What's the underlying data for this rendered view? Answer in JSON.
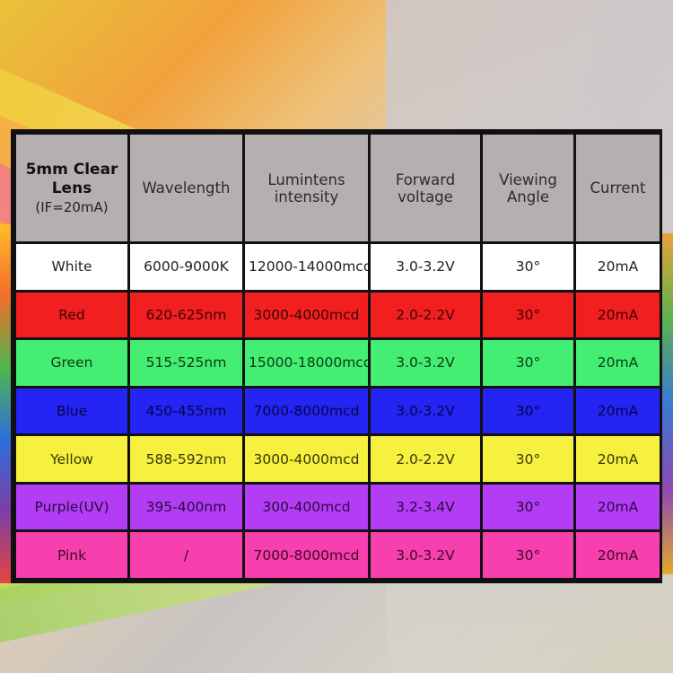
{
  "table": {
    "header": {
      "lens_title": "5mm Clear Lens",
      "lens_sub": "(IF=20mA)",
      "wavelength": "Wavelength",
      "intensity": "Lumintens intensity",
      "voltage": "Forward voltage",
      "angle": "Viewing Angle",
      "current": "Current"
    },
    "rows": [
      {
        "color": "White",
        "wavelength": "6000-9000K",
        "intensity": "12000-14000mcd",
        "voltage": "3.0-3.2V",
        "angle": "30°",
        "current": "20mA",
        "bg": "#ffffff"
      },
      {
        "color": "Red",
        "wavelength": "620-625nm",
        "intensity": "3000-4000mcd",
        "voltage": "2.0-2.2V",
        "angle": "30°",
        "current": "20mA",
        "bg": "#f11f20"
      },
      {
        "color": "Green",
        "wavelength": "515-525nm",
        "intensity": "15000-18000mcd",
        "voltage": "3.0-3.2V",
        "angle": "30°",
        "current": "20mA",
        "bg": "#43ee72"
      },
      {
        "color": "Blue",
        "wavelength": "450-455nm",
        "intensity": "7000-8000mcd",
        "voltage": "3.0-3.2V",
        "angle": "30°",
        "current": "20mA",
        "bg": "#2424f3"
      },
      {
        "color": "Yellow",
        "wavelength": "588-592nm",
        "intensity": "3000-4000mcd",
        "voltage": "2.0-2.2V",
        "angle": "30°",
        "current": "20mA",
        "bg": "#f6f03f"
      },
      {
        "color": "Purple(UV)",
        "wavelength": "395-400nm",
        "intensity": "300-400mcd",
        "voltage": "3.2-3.4V",
        "angle": "30°",
        "current": "20mA",
        "bg": "#b23df4"
      },
      {
        "color": "Pink",
        "wavelength": "/",
        "intensity": "7000-8000mcd",
        "voltage": "3.0-3.2V",
        "angle": "30°",
        "current": "20mA",
        "bg": "#f73fad"
      }
    ]
  }
}
